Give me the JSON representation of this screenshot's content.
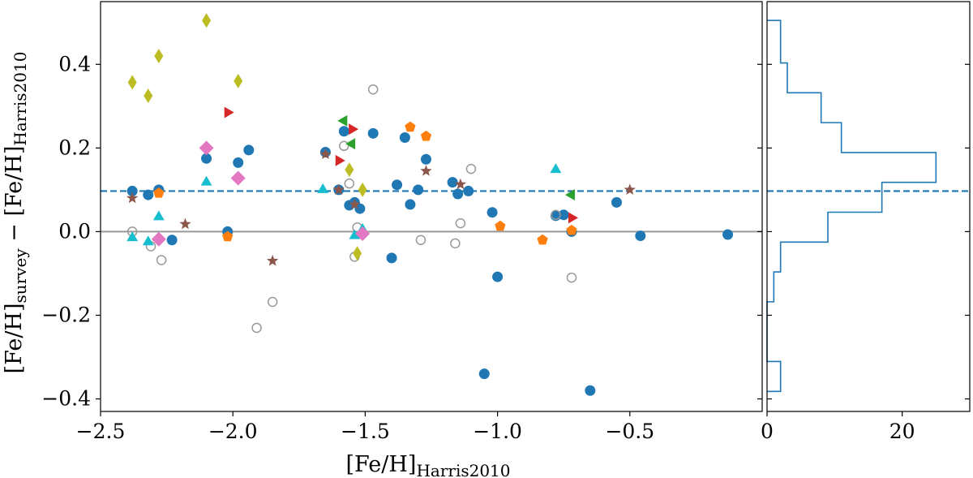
{
  "chart_data": [
    {
      "type": "scatter",
      "panel": "main",
      "title": "",
      "xlabel": {
        "main": "[Fe/H]",
        "sub": "Harris2010"
      },
      "ylabel": {
        "pre": "[Fe/H]",
        "sub1": "survey",
        "mid": " − [Fe/H]",
        "sub2": "Harris2010"
      },
      "xlim": [
        -2.5,
        -0.0
      ],
      "ylim": [
        -0.43,
        0.55
      ],
      "xticks": [
        -2.5,
        -2.0,
        -1.5,
        -1.0,
        -0.5
      ],
      "xtick_labels": [
        "−2.5",
        "−2.0",
        "−1.5",
        "−1.0",
        "−0.5"
      ],
      "yticks": [
        -0.4,
        -0.2,
        0.0,
        0.2,
        0.4
      ],
      "ytick_labels": [
        "−0.4",
        "−0.2",
        "0.0",
        "0.2",
        "0.4"
      ],
      "reference_lines": [
        {
          "name": "zero-line",
          "y": 0.0,
          "color": "#999999",
          "style": "solid"
        },
        {
          "name": "mean-offset-line",
          "y": 0.097,
          "color": "#1f77b4",
          "style": "dashed"
        }
      ],
      "series": [
        {
          "name": "filled circles",
          "marker": "circle",
          "color": "#1f77b4",
          "filled": true,
          "points": [
            [
              -2.38,
              0.097
            ],
            [
              -2.32,
              0.088
            ],
            [
              -2.28,
              0.1
            ],
            [
              -2.23,
              -0.02
            ],
            [
              -2.1,
              0.175
            ],
            [
              -2.02,
              0.0
            ],
            [
              -1.98,
              0.165
            ],
            [
              -1.94,
              0.195
            ],
            [
              -1.65,
              0.19
            ],
            [
              -1.6,
              0.1
            ],
            [
              -1.58,
              0.24
            ],
            [
              -1.56,
              0.063
            ],
            [
              -1.54,
              0.07
            ],
            [
              -1.52,
              0.055
            ],
            [
              -1.47,
              0.235
            ],
            [
              -1.4,
              -0.063
            ],
            [
              -1.38,
              0.112
            ],
            [
              -1.35,
              0.225
            ],
            [
              -1.33,
              0.065
            ],
            [
              -1.3,
              0.1
            ],
            [
              -1.27,
              0.173
            ],
            [
              -1.17,
              0.118
            ],
            [
              -1.15,
              0.09
            ],
            [
              -1.11,
              0.097
            ],
            [
              -1.05,
              -0.34
            ],
            [
              -1.02,
              0.046
            ],
            [
              -1.0,
              -0.108
            ],
            [
              -0.78,
              0.038
            ],
            [
              -0.75,
              0.04
            ],
            [
              -0.72,
              0.0
            ],
            [
              -0.65,
              -0.38
            ],
            [
              -0.55,
              0.07
            ],
            [
              -0.46,
              -0.01
            ],
            [
              -0.13,
              -0.007
            ]
          ]
        },
        {
          "name": "open circles",
          "marker": "circle",
          "color": "#999999",
          "filled": false,
          "points": [
            [
              -2.38,
              0.0
            ],
            [
              -2.31,
              -0.035
            ],
            [
              -2.27,
              -0.068
            ],
            [
              -1.91,
              -0.23
            ],
            [
              -1.85,
              -0.168
            ],
            [
              -1.58,
              0.205
            ],
            [
              -1.56,
              0.115
            ],
            [
              -1.54,
              -0.06
            ],
            [
              -1.53,
              0.01
            ],
            [
              -1.47,
              0.34
            ],
            [
              -1.29,
              -0.02
            ],
            [
              -1.16,
              -0.028
            ],
            [
              -1.14,
              0.02
            ],
            [
              -1.1,
              0.15
            ],
            [
              -0.78,
              0.04
            ],
            [
              -0.72,
              -0.11
            ]
          ]
        },
        {
          "name": "diamonds olive",
          "marker": "thin-diamond",
          "color": "#bcbd22",
          "filled": true,
          "points": [
            [
              -2.38,
              0.357
            ],
            [
              -2.32,
              0.325
            ],
            [
              -2.28,
              0.42
            ],
            [
              -2.1,
              0.505
            ],
            [
              -1.98,
              0.36
            ],
            [
              -1.56,
              0.148
            ],
            [
              -1.53,
              -0.052
            ],
            [
              -1.51,
              0.1
            ]
          ]
        },
        {
          "name": "right triangles red",
          "marker": "triangle-right",
          "color": "#d62728",
          "filled": true,
          "points": [
            [
              -2.02,
              0.285
            ],
            [
              -1.6,
              0.17
            ],
            [
              -1.55,
              0.245
            ],
            [
              -0.72,
              0.033
            ]
          ]
        },
        {
          "name": "left triangles green",
          "marker": "triangle-left",
          "color": "#2ca02c",
          "filled": true,
          "points": [
            [
              -1.58,
              0.265
            ],
            [
              -1.55,
              0.21
            ],
            [
              -0.72,
              0.088
            ]
          ]
        },
        {
          "name": "pentagons orange",
          "marker": "pentagon",
          "color": "#ff7f0e",
          "filled": true,
          "points": [
            [
              -2.28,
              0.092
            ],
            [
              -2.02,
              -0.012
            ],
            [
              -1.33,
              0.25
            ],
            [
              -1.27,
              0.228
            ],
            [
              -0.99,
              0.013
            ],
            [
              -0.83,
              -0.02
            ],
            [
              -0.72,
              0.003
            ]
          ]
        },
        {
          "name": "stars brown",
          "marker": "star",
          "color": "#8c564b",
          "filled": true,
          "points": [
            [
              -2.38,
              0.08
            ],
            [
              -2.18,
              0.018
            ],
            [
              -1.85,
              -0.07
            ],
            [
              -1.65,
              0.185
            ],
            [
              -1.6,
              0.1
            ],
            [
              -1.54,
              0.065
            ],
            [
              -1.27,
              0.145
            ],
            [
              -1.14,
              0.113
            ],
            [
              -0.5,
              0.1
            ]
          ]
        },
        {
          "name": "triangles cyan",
          "marker": "triangle-up",
          "color": "#17becf",
          "filled": true,
          "points": [
            [
              -2.38,
              -0.015
            ],
            [
              -2.32,
              -0.025
            ],
            [
              -2.28,
              0.035
            ],
            [
              -2.1,
              0.118
            ],
            [
              -1.66,
              0.1
            ],
            [
              -1.54,
              -0.01
            ],
            [
              -1.51,
              0.005
            ],
            [
              -0.78,
              0.148
            ]
          ]
        },
        {
          "name": "diamonds pink",
          "marker": "diamond",
          "color": "#e377c2",
          "filled": true,
          "points": [
            [
              -2.28,
              -0.018
            ],
            [
              -2.1,
              0.2
            ],
            [
              -1.98,
              0.128
            ],
            [
              -1.51,
              -0.005
            ]
          ]
        }
      ]
    },
    {
      "type": "histogram",
      "panel": "side",
      "orientation": "horizontal",
      "color": "#1f77b4",
      "xlim": [
        0,
        30
      ],
      "xticks": [
        0,
        20
      ],
      "xtick_labels": [
        "0",
        "20"
      ],
      "bin_edges": [
        -0.382,
        -0.3106,
        -0.2392,
        -0.1678,
        -0.0964,
        -0.025,
        0.0464,
        0.1178,
        0.1892,
        0.2606,
        0.332,
        0.4034,
        0.505
      ],
      "counts": [
        2,
        0,
        0,
        1,
        2,
        9,
        17,
        25,
        11,
        8,
        3,
        2
      ],
      "mean_line_y": 0.097
    }
  ]
}
